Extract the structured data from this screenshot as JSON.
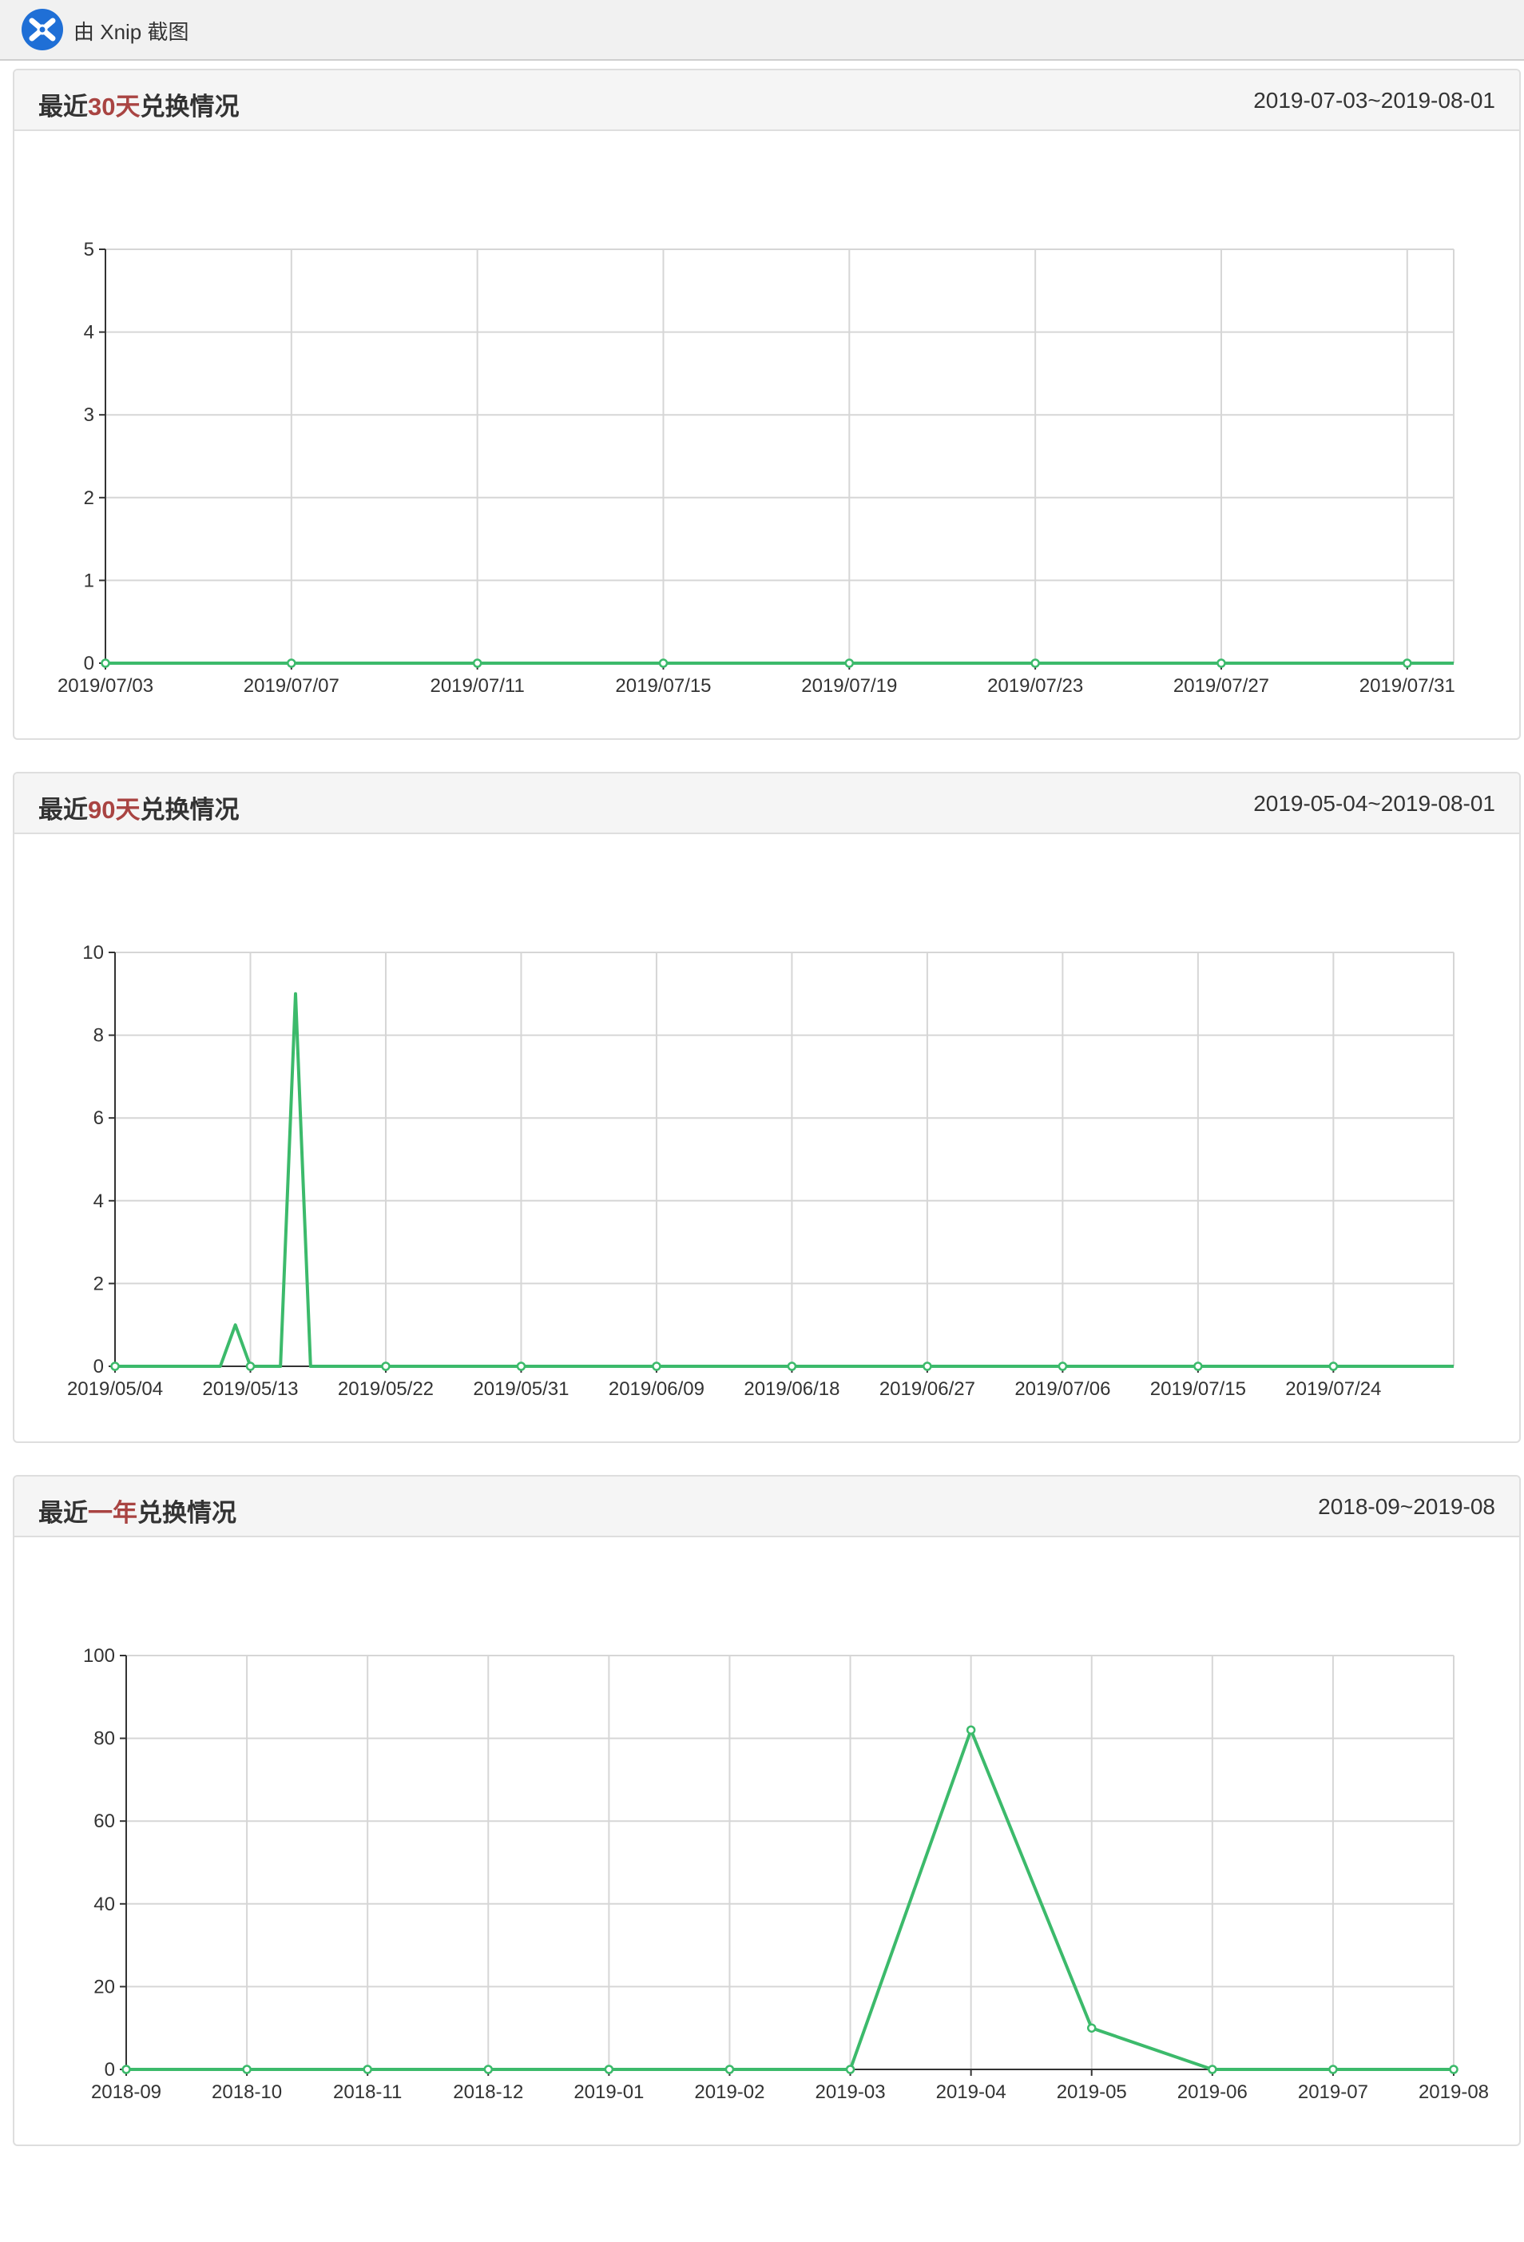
{
  "app": {
    "caption": "由 Xnip 截图"
  },
  "colors": {
    "line": "#3cba6b",
    "highlight": "#a94442",
    "grid": "#d6d6d6",
    "axis": "#333333"
  },
  "panels": [
    {
      "title_prefix": "最近",
      "title_highlight": "30天",
      "title_suffix": "兑换情况",
      "date_range": "2019-07-03~2019-08-01"
    },
    {
      "title_prefix": "最近",
      "title_highlight": "90天",
      "title_suffix": "兑换情况",
      "date_range": "2019-05-04~2019-08-01"
    },
    {
      "title_prefix": "最近",
      "title_highlight": "一年",
      "title_suffix": "兑换情况",
      "date_range": "2018-09~2019-08"
    }
  ],
  "chart_data": [
    {
      "type": "line",
      "title": "最近30天兑换情况",
      "xlabel": "",
      "ylabel": "",
      "ylim": [
        0,
        5
      ],
      "yticks": [
        0,
        1,
        2,
        3,
        4,
        5
      ],
      "grid": true,
      "xlabels": [
        "2019/07/03",
        "2019/07/07",
        "2019/07/11",
        "2019/07/15",
        "2019/07/19",
        "2019/07/23",
        "2019/07/27",
        "2019/07/31"
      ],
      "label_step": 4,
      "n_points": 30,
      "points": [
        0,
        0,
        0,
        0,
        0,
        0,
        0,
        0,
        0,
        0,
        0,
        0,
        0,
        0,
        0,
        0,
        0,
        0,
        0,
        0,
        0,
        0,
        0,
        0,
        0,
        0,
        0,
        0,
        0,
        0
      ],
      "marker_every": 4
    },
    {
      "type": "line",
      "title": "最近90天兑换情况",
      "xlabel": "",
      "ylabel": "",
      "ylim": [
        0,
        10
      ],
      "yticks": [
        0,
        2,
        4,
        6,
        8,
        10
      ],
      "grid": true,
      "xlabels": [
        "2019/05/04",
        "2019/05/13",
        "2019/05/22",
        "2019/05/31",
        "2019/06/09",
        "2019/06/18",
        "2019/06/27",
        "2019/07/06",
        "2019/07/15",
        "2019/07/24"
      ],
      "label_step": 9,
      "n_points": 90,
      "points": [
        0,
        0,
        0,
        0,
        0,
        0,
        0,
        0,
        1,
        0,
        0,
        0,
        9,
        0,
        0,
        0,
        0,
        0,
        0,
        0,
        0,
        0,
        0,
        0,
        0,
        0,
        0,
        0,
        0,
        0,
        0,
        0,
        0,
        0,
        0,
        0,
        0,
        0,
        0,
        0,
        0,
        0,
        0,
        0,
        0,
        0,
        0,
        0,
        0,
        0,
        0,
        0,
        0,
        0,
        0,
        0,
        0,
        0,
        0,
        0,
        0,
        0,
        0,
        0,
        0,
        0,
        0,
        0,
        0,
        0,
        0,
        0,
        0,
        0,
        0,
        0,
        0,
        0,
        0,
        0,
        0,
        0,
        0,
        0,
        0,
        0,
        0,
        0,
        0,
        0
      ],
      "marker_every": 9
    },
    {
      "type": "line",
      "title": "最近一年兑换情况",
      "xlabel": "",
      "ylabel": "",
      "ylim": [
        0,
        100
      ],
      "yticks": [
        0,
        20,
        40,
        60,
        80,
        100
      ],
      "grid": true,
      "xlabels": [
        "2018-09",
        "2018-10",
        "2018-11",
        "2018-12",
        "2019-01",
        "2019-02",
        "2019-03",
        "2019-04",
        "2019-05",
        "2019-06",
        "2019-07",
        "2019-08"
      ],
      "label_step": 1,
      "n_points": 12,
      "points": [
        0,
        0,
        0,
        0,
        0,
        0,
        0,
        82,
        10,
        0,
        0,
        0
      ],
      "marker_every": 1
    }
  ]
}
